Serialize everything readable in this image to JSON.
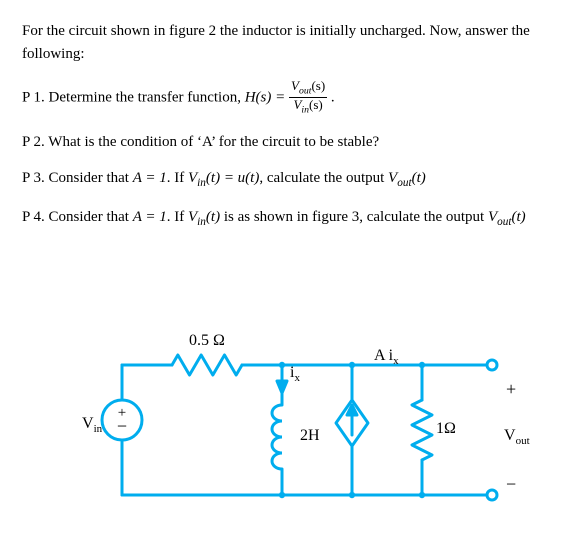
{
  "intro": "For the circuit shown in figure 2 the inductor is initially uncharged. Now, answer the following:",
  "items": {
    "p1": {
      "label": "P 1.",
      "text_a": "Determine the transfer function, ",
      "hs": "H(s) = ",
      "num": "V",
      "num_sub": "out",
      "num_arg": "(s)",
      "den": "V",
      "den_sub": "in",
      "den_arg": "(s)",
      "tail": " ."
    },
    "p2": {
      "label": "P 2.",
      "text": "What is the condition of ‘A’ for the circuit to be stable?"
    },
    "p3": {
      "label": "P 3.",
      "text_a": "Consider that ",
      "eqA": "A = 1",
      "text_b": ". If ",
      "vin": "V",
      "vin_sub": "in",
      "vin_arg": "(t) = u(t)",
      "text_c": ", calculate the output ",
      "vout": "V",
      "vout_sub": "out",
      "vout_arg": "(t)"
    },
    "p4": {
      "label": "P 4.",
      "text_a": "Consider that ",
      "eqA": "A = 1",
      "text_b": ". If ",
      "vin": "V",
      "vin_sub": "in",
      "vin_arg": "(t)",
      "text_c": " is as shown in figure 3, calculate the output ",
      "vout": "V",
      "vout_sub": "out",
      "vout_arg": "(t)"
    }
  },
  "circuit": {
    "labels": {
      "r1": "0.5 Ω",
      "ix": "i",
      "ix_sub": "x",
      "dep": "A i",
      "dep_sub": "x",
      "L": "2H",
      "r2": "1Ω",
      "vin": "V",
      "vin_sub": "in",
      "vout": "V",
      "vout_sub": "out",
      "plus": "+",
      "minus_term": "−"
    },
    "colors": {
      "wire": "#00adee",
      "text": "#000000",
      "terminal_fill": "#ffffff"
    },
    "stroke_width": 3
  }
}
